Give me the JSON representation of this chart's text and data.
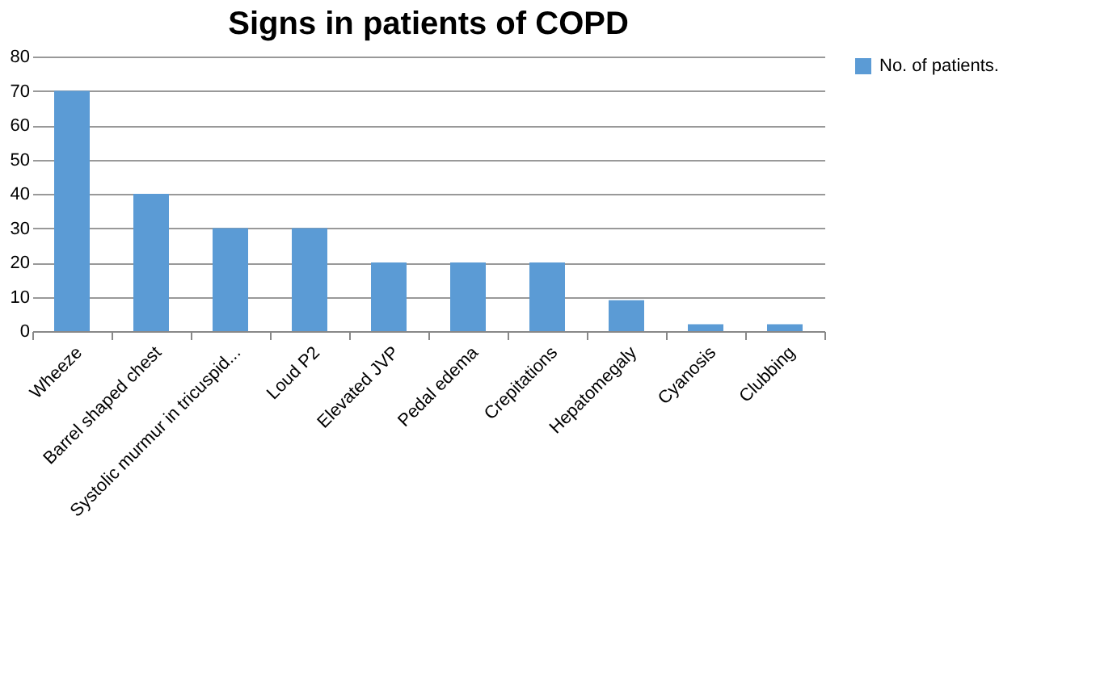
{
  "chart_data": {
    "type": "bar",
    "title": "Signs in patients of COPD",
    "categories": [
      "Wheeze",
      "Barrel shaped chest",
      "Systolic murmur in tricuspid...",
      "Loud P2",
      "Elevated JVP",
      "Pedal edema",
      "Crepitations",
      "Hepatomegaly",
      "Cyanosis",
      "Clubbing"
    ],
    "series": [
      {
        "name": "No. of patients.",
        "color": "#5b9bd5",
        "values": [
          70,
          40,
          30,
          30,
          20,
          20,
          20,
          9,
          2,
          2
        ]
      }
    ],
    "ylim": [
      0,
      80
    ],
    "yticks": [
      0,
      10,
      20,
      30,
      40,
      50,
      60,
      70,
      80
    ],
    "grid": "y",
    "legend": "right"
  }
}
